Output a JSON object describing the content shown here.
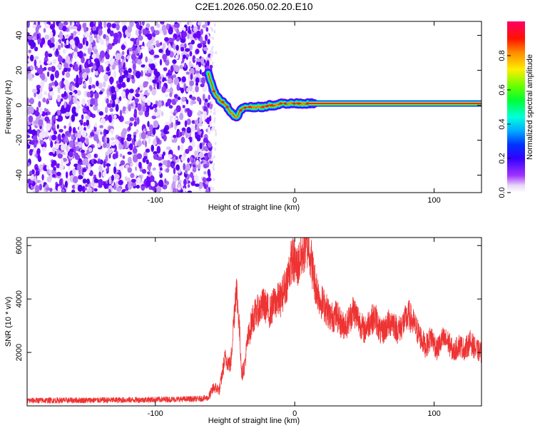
{
  "title": "C2E1.2026.050.02.20.E10",
  "chart_data": [
    {
      "type": "heatmap",
      "xlabel": "Height of straight line (km)",
      "ylabel": "Frequency (Hz)",
      "xlim": [
        -192,
        134
      ],
      "ylim": [
        -50,
        48
      ],
      "xticks": [
        -100,
        0,
        100
      ],
      "yticks": [
        -40,
        -20,
        0,
        20,
        40
      ],
      "noise_region_x": [
        -192,
        -62
      ],
      "ridge": {
        "x": [
          -62,
          -58,
          -54,
          -50,
          -46,
          -42,
          -38,
          -34,
          -30,
          -26,
          -22,
          -18,
          -14,
          -10,
          -6,
          -2,
          2,
          6,
          10,
          14,
          134
        ],
        "y": [
          18,
          8,
          3,
          1,
          -4,
          -7,
          -2,
          -1,
          -1,
          -1,
          -1,
          0,
          0,
          1,
          1,
          1,
          1,
          1,
          1,
          1,
          1
        ]
      },
      "colorbar": {
        "label": "Normalized spectral amplitude",
        "ticks": [
          0.0,
          0.2,
          0.4,
          0.6,
          0.8
        ],
        "range": [
          0,
          1
        ],
        "colors": [
          "#ffffff",
          "#d4b8f0",
          "#9a33ff",
          "#4a00ff",
          "#0000ff",
          "#00aaff",
          "#00ffcc",
          "#00ff00",
          "#88ff00",
          "#ffff00",
          "#ff8800",
          "#ff0000",
          "#ff0066"
        ]
      }
    },
    {
      "type": "line",
      "xlabel": "Height of straight line (km)",
      "ylabel": "SNR (10 * v/v)",
      "xlim": [
        -192,
        134
      ],
      "ylim": [
        0,
        6300
      ],
      "xticks": [
        -100,
        0,
        100
      ],
      "yticks": [
        2000,
        4000,
        6000
      ],
      "color": "#ee3333",
      "envelope": {
        "x": [
          -192,
          -120,
          -70,
          -62,
          -58,
          -54,
          -50,
          -46,
          -44,
          -42,
          -40,
          -38,
          -36,
          -34,
          -30,
          -26,
          -22,
          -18,
          -14,
          -10,
          -6,
          -2,
          2,
          6,
          10,
          14,
          18,
          22,
          26,
          30,
          34,
          38,
          42,
          46,
          50,
          54,
          58,
          62,
          66,
          70,
          74,
          78,
          82,
          86,
          90,
          94,
          98,
          102,
          106,
          110,
          114,
          118,
          122,
          126,
          130,
          134
        ],
        "y": [
          200,
          220,
          260,
          300,
          700,
          600,
          1800,
          1500,
          3000,
          4500,
          3200,
          1200,
          1500,
          2400,
          3300,
          3600,
          3800,
          3500,
          3900,
          4000,
          4600,
          5500,
          5200,
          5800,
          6100,
          4700,
          4000,
          3700,
          3300,
          3400,
          3000,
          3100,
          3600,
          3200,
          2800,
          3200,
          3300,
          2700,
          3000,
          3200,
          2800,
          3100,
          3400,
          3000,
          2600,
          2200,
          2600,
          2100,
          2500,
          2400,
          2000,
          2300,
          2100,
          2400,
          2100,
          2000
        ]
      },
      "noise_amplitude": 180,
      "samples": 3000
    }
  ]
}
